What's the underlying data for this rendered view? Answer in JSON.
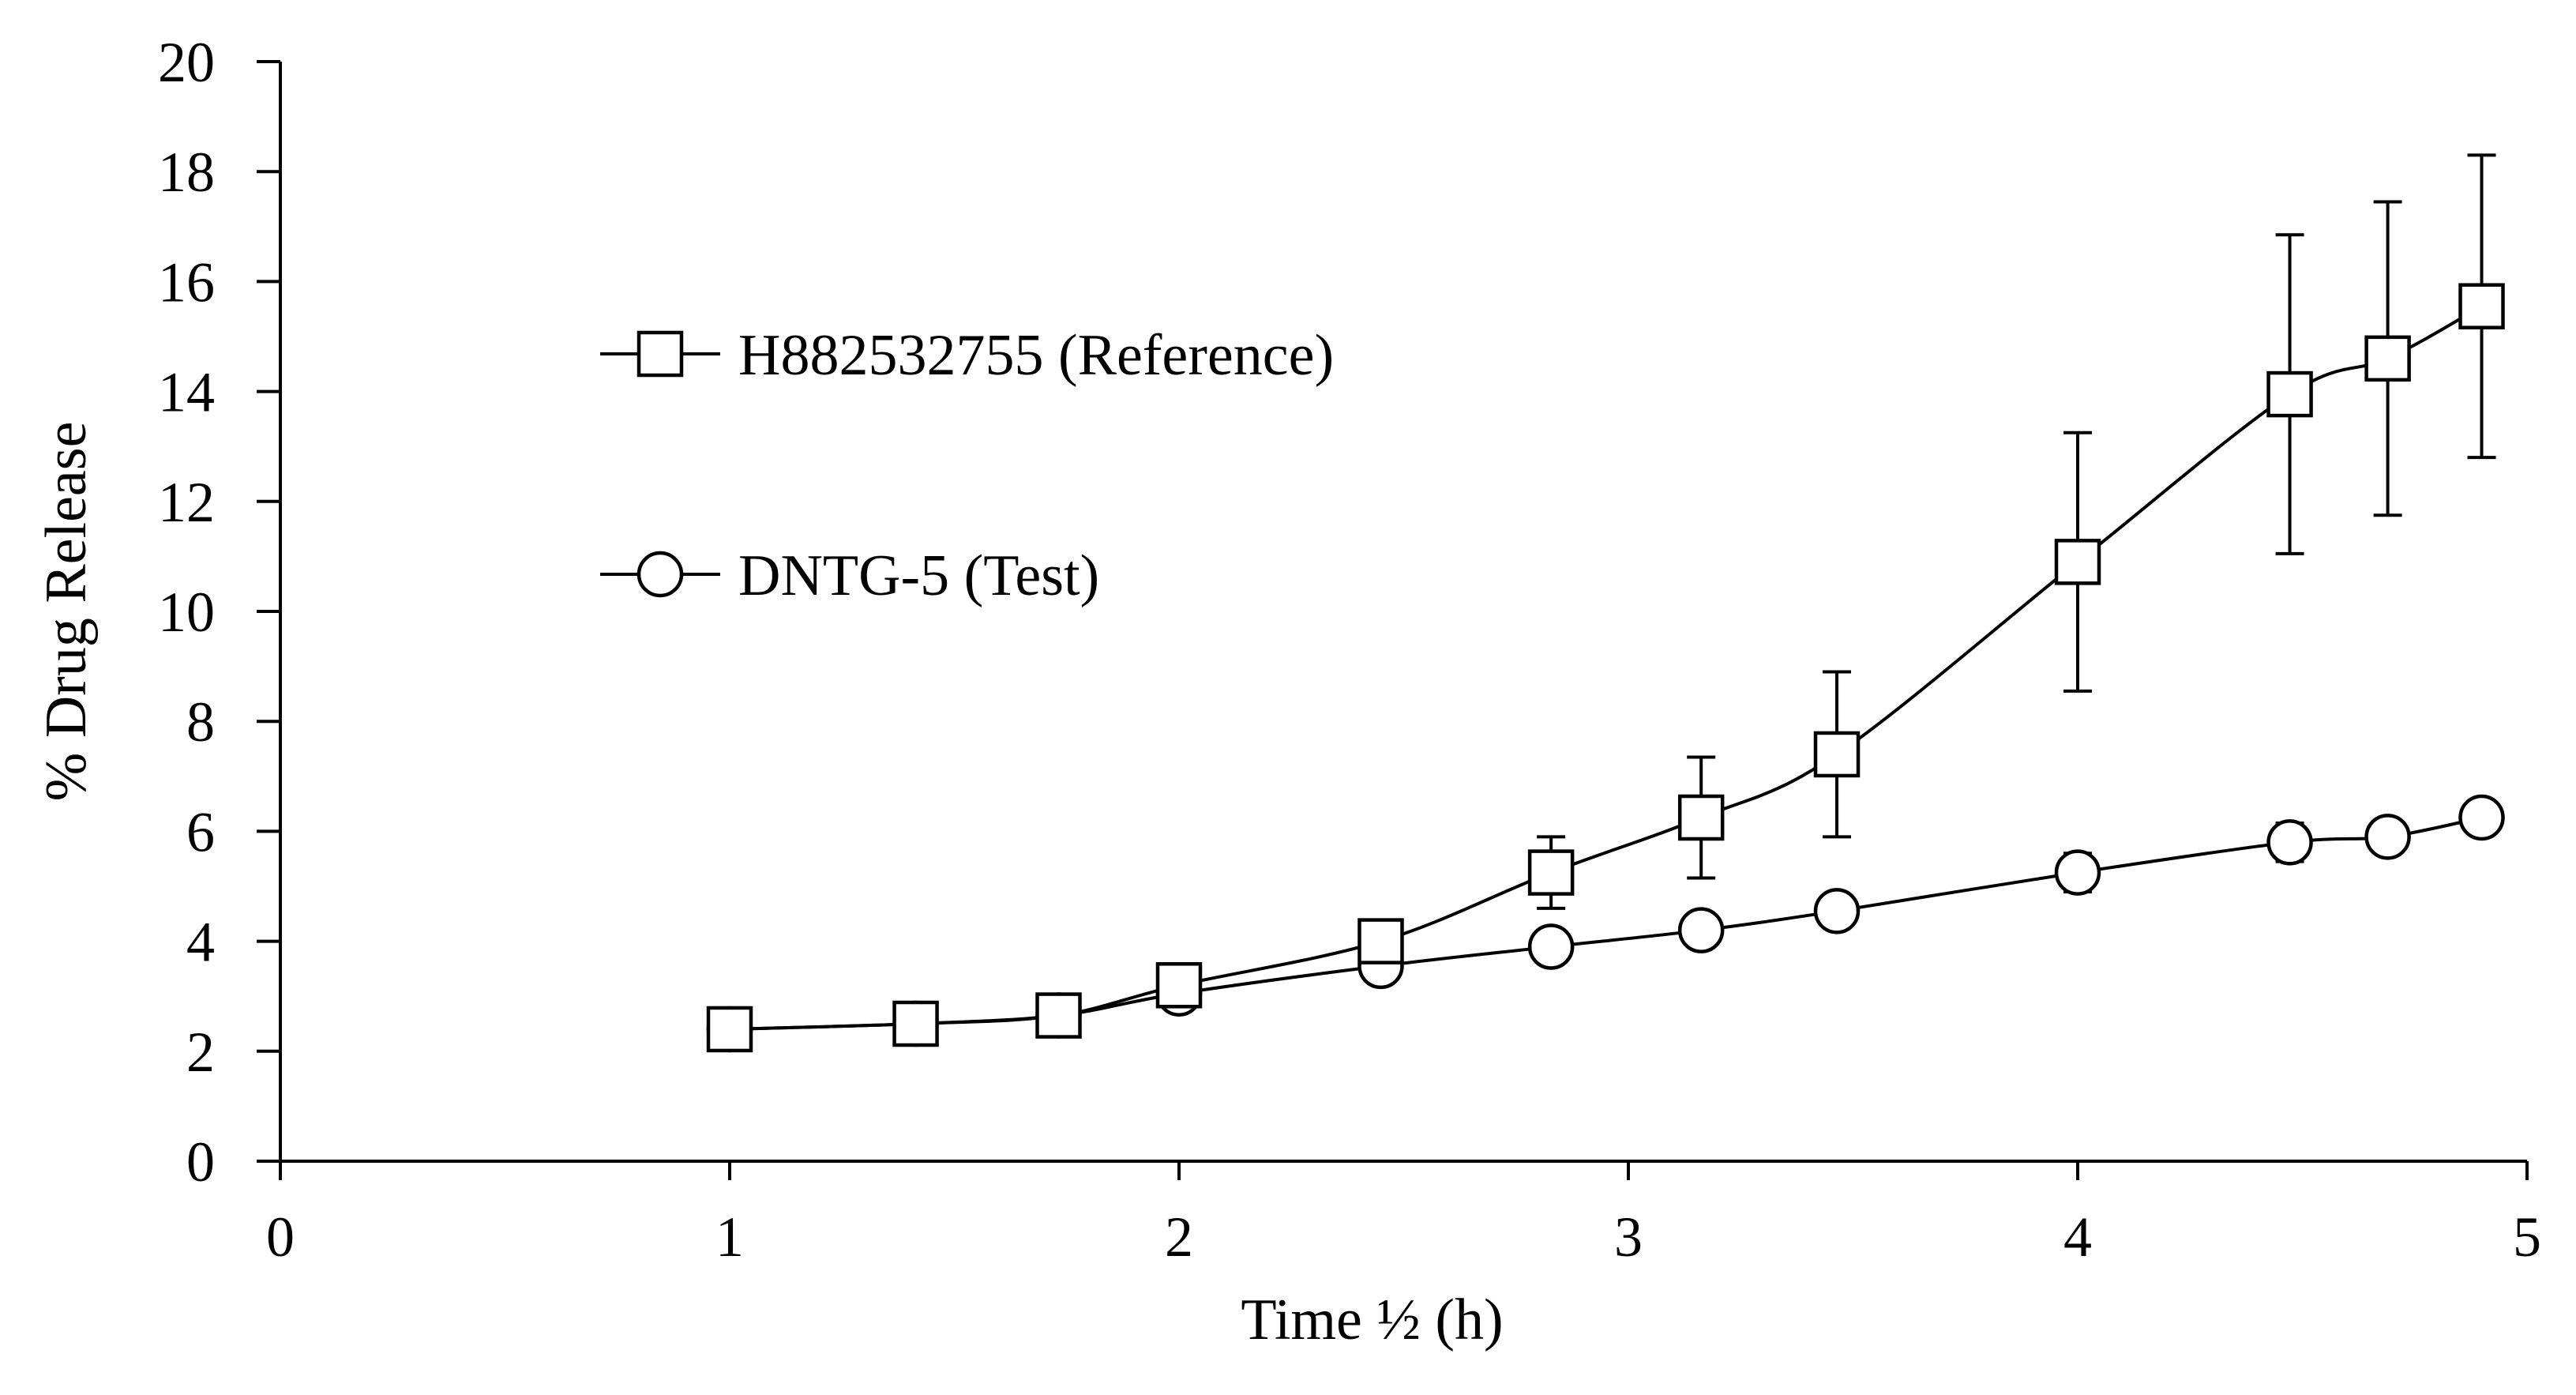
{
  "chart_data": {
    "type": "line",
    "xlabel": "Time ½ (h)",
    "ylabel": "% Drug Release",
    "xlim": [
      0,
      5
    ],
    "ylim": [
      0,
      20
    ],
    "x_ticks": [
      "0",
      "1",
      "2",
      "3",
      "4",
      "5"
    ],
    "y_ticks": [
      "0",
      "2",
      "4",
      "6",
      "8",
      "10",
      "12",
      "14",
      "16",
      "18",
      "20"
    ],
    "grid": false,
    "legend_position": "upper-left",
    "series": [
      {
        "name": "H882532755 (Reference)",
        "marker": "square",
        "x": [
          1.0,
          1.414,
          1.732,
          2.0,
          2.449,
          2.828,
          3.162,
          3.464,
          4.0,
          4.472,
          4.69,
          4.899
        ],
        "y": [
          2.4,
          2.5,
          2.65,
          3.2,
          4.0,
          5.25,
          6.25,
          7.4,
          10.9,
          13.95,
          14.6,
          15.55
        ],
        "error": [
          0.0,
          0.0,
          0.0,
          0.0,
          0.35,
          0.65,
          1.1,
          1.5,
          2.35,
          2.9,
          2.85,
          2.75
        ]
      },
      {
        "name": "DNTG-5 (Test)",
        "marker": "circle",
        "x": [
          1.0,
          1.414,
          1.732,
          2.0,
          2.449,
          2.828,
          3.162,
          3.464,
          4.0,
          4.472,
          4.69,
          4.899
        ],
        "y": [
          2.4,
          2.5,
          2.65,
          3.05,
          3.55,
          3.9,
          4.2,
          4.55,
          5.25,
          5.8,
          5.9,
          6.25
        ],
        "error": [
          0.0,
          0.0,
          0.0,
          0.0,
          0.0,
          0.0,
          0.0,
          0.0,
          0.35,
          0.35,
          0.0,
          0.2
        ]
      }
    ]
  }
}
